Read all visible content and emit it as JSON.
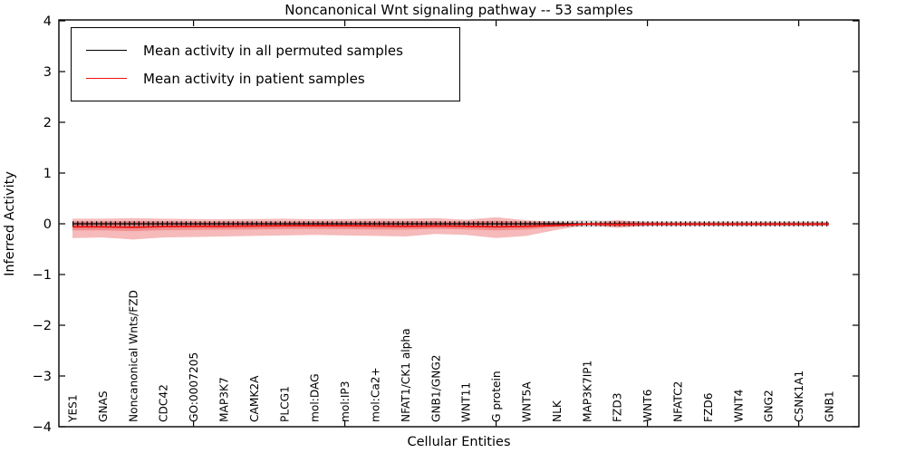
{
  "figure": {
    "title": "Noncanonical Wnt signaling pathway -- 53 samples",
    "xlabel": "Cellular Entities",
    "ylabel": "Inferred Activity"
  },
  "legend": {
    "items": [
      {
        "label": "Mean activity in all permuted samples",
        "color": "#000000",
        "line_width": 1.5
      },
      {
        "label": "Mean activity in patient samples",
        "color": "#ee1111",
        "line_width": 1.8
      }
    ]
  },
  "chart_data": {
    "type": "line",
    "title": "Noncanonical Wnt signaling pathway -- 53 samples",
    "xlabel": "Cellular Entities",
    "ylabel": "Inferred Activity",
    "ylim": [
      -4,
      4
    ],
    "ytick_values": [
      4,
      3,
      2,
      1,
      0,
      -1,
      -2,
      -3,
      -4
    ],
    "ytick_labels": [
      "4",
      "3",
      "2",
      "1",
      "0",
      "−1",
      "−2",
      "−3",
      "−4"
    ],
    "xtick_positions": [
      5,
      10,
      15,
      20,
      25
    ],
    "grid": false,
    "legend_position": "upper left",
    "categories": [
      "YES1",
      "GNAS",
      "Noncanonical Wnts/FZD",
      "CDC42",
      "GO:0007205",
      "MAP3K7",
      "CAMK2A",
      "PLCG1",
      "mol:DAG",
      "mol:IP3",
      "mol:Ca2+",
      "NFAT1/CK1 alpha",
      "GNB1/GNG2",
      "WNT11",
      "G protein",
      "WNT5A",
      "NLK",
      "MAP3K7IP1",
      "FZD3",
      "WNT6",
      "NFATC2",
      "FZD6",
      "WNT4",
      "GNG2",
      "CSNK1A1",
      "GNB1"
    ],
    "series": [
      {
        "name": "Mean activity in all permuted samples",
        "color": "#000000",
        "marker": "vertical-tick",
        "values": [
          0,
          0,
          0,
          0,
          0,
          0,
          0,
          0,
          0,
          0,
          0,
          0,
          0,
          0,
          0,
          0,
          0,
          0,
          0,
          0,
          0,
          0,
          0,
          0,
          0,
          0
        ]
      },
      {
        "name": "Mean activity in patient samples",
        "color": "#ee1111",
        "marker": "none",
        "values": [
          -0.06,
          -0.06,
          -0.07,
          -0.055,
          -0.05,
          -0.05,
          -0.045,
          -0.04,
          -0.04,
          -0.04,
          -0.045,
          -0.05,
          -0.045,
          -0.05,
          -0.06,
          -0.05,
          -0.03,
          -0.005,
          -0.015,
          -0.008,
          -0.008,
          -0.008,
          -0.008,
          -0.008,
          -0.008,
          -0.008
        ]
      }
    ],
    "bands": [
      {
        "name": "permuted-sample-range",
        "color": "rgba(0,0,0,0.13)",
        "top": [
          0.05,
          0.05,
          0.05,
          0.05,
          0.05,
          0.05,
          0.05,
          0.05,
          0.05,
          0.05,
          0.05,
          0.05,
          0.05,
          0.05,
          0.05,
          0.05,
          0.06,
          0.07,
          0.06,
          0.05,
          0.05,
          0.05,
          0.05,
          0.05,
          0.05,
          0.045
        ],
        "bottom": [
          -0.05,
          -0.05,
          -0.05,
          -0.05,
          -0.05,
          -0.05,
          -0.05,
          -0.05,
          -0.05,
          -0.05,
          -0.05,
          -0.05,
          -0.05,
          -0.05,
          -0.05,
          -0.05,
          -0.06,
          -0.07,
          -0.06,
          -0.05,
          -0.05,
          -0.05,
          -0.05,
          -0.05,
          -0.05,
          -0.045
        ]
      },
      {
        "name": "patient-sample-range-outer",
        "color": "rgba(226,26,28,0.30)",
        "top": [
          0.1,
          0.1,
          0.11,
          0.1,
          0.095,
          0.09,
          0.095,
          0.1,
          0.09,
          0.095,
          0.1,
          0.1,
          0.11,
          0.08,
          0.13,
          0.07,
          0.04,
          0.01,
          0.07,
          0.035,
          0.03,
          0.03,
          0.03,
          0.03,
          0.03,
          0.03
        ],
        "bottom": [
          -0.28,
          -0.27,
          -0.31,
          -0.27,
          -0.26,
          -0.25,
          -0.24,
          -0.23,
          -0.22,
          -0.23,
          -0.24,
          -0.25,
          -0.2,
          -0.22,
          -0.28,
          -0.24,
          -0.12,
          -0.02,
          -0.08,
          -0.04,
          -0.04,
          -0.04,
          -0.04,
          -0.04,
          -0.04,
          -0.04
        ]
      },
      {
        "name": "patient-sample-range-inner",
        "color": "rgba(226,26,28,0.28)",
        "top": [
          0.04,
          0.04,
          0.05,
          0.045,
          0.04,
          0.04,
          0.04,
          0.04,
          0.04,
          0.04,
          0.045,
          0.05,
          0.05,
          0.04,
          0.06,
          0.035,
          0.02,
          0.005,
          0.035,
          0.02,
          0.015,
          0.015,
          0.015,
          0.015,
          0.015,
          0.015
        ],
        "bottom": [
          -0.13,
          -0.13,
          -0.145,
          -0.125,
          -0.12,
          -0.115,
          -0.11,
          -0.105,
          -0.1,
          -0.105,
          -0.11,
          -0.115,
          -0.1,
          -0.11,
          -0.13,
          -0.115,
          -0.06,
          -0.015,
          -0.05,
          -0.025,
          -0.025,
          -0.025,
          -0.025,
          -0.025,
          -0.025,
          -0.025
        ]
      }
    ]
  }
}
